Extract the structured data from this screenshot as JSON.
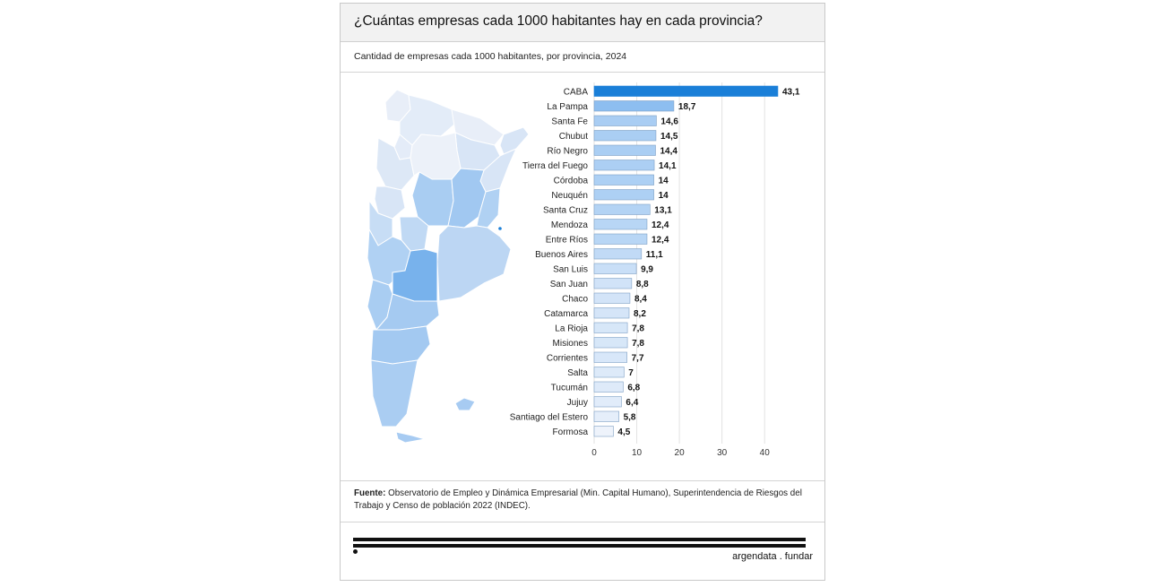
{
  "title": "¿Cuántas empresas cada 1000 habitantes hay en cada provincia?",
  "subtitle": "Cantidad de empresas cada 1000 habitantes, por provincia, 2024",
  "source": {
    "label": "Fuente:",
    "text": "Observatorio de Empleo y Dinámica Empresarial (Min. Capital Humano), Superintendencia de Riesgos del Trabajo y Censo de población 2022 (INDEC)."
  },
  "brand": "argendata . fundar",
  "colors": {
    "highlight": "#1a7fd8",
    "scale_high": "#8dbef0",
    "scale_low": "#eef3fb",
    "bar_border": "#7d9fc4"
  },
  "chart_data": {
    "type": "bar",
    "orientation": "horizontal",
    "categories": [
      "CABA",
      "La Pampa",
      "Santa Fe",
      "Chubut",
      "Río Negro",
      "Tierra del Fuego",
      "Córdoba",
      "Neuquén",
      "Santa Cruz",
      "Mendoza",
      "Entre Ríos",
      "Buenos Aires",
      "San Luis",
      "San Juan",
      "Chaco",
      "Catamarca",
      "La Rioja",
      "Misiones",
      "Corrientes",
      "Salta",
      "Tucumán",
      "Jujuy",
      "Santiago del Estero",
      "Formosa"
    ],
    "values": [
      43.1,
      18.7,
      14.6,
      14.5,
      14.4,
      14.1,
      14,
      14,
      13.1,
      12.4,
      12.4,
      11.1,
      9.9,
      8.8,
      8.4,
      8.2,
      7.8,
      7.8,
      7.7,
      7,
      6.8,
      6.4,
      5.8,
      4.5
    ],
    "value_labels": [
      "43,1",
      "18,7",
      "14,6",
      "14,5",
      "14,4",
      "14,1",
      "14",
      "14",
      "13,1",
      "12,4",
      "12,4",
      "11,1",
      "9,9",
      "8,8",
      "8,4",
      "8,2",
      "7,8",
      "7,8",
      "7,7",
      "7",
      "6,8",
      "6,4",
      "5,8",
      "4,5"
    ],
    "xticks": [
      0,
      10,
      20,
      30,
      40
    ],
    "xlim": [
      0,
      45
    ],
    "grid": true,
    "highlight_category": "CABA"
  }
}
